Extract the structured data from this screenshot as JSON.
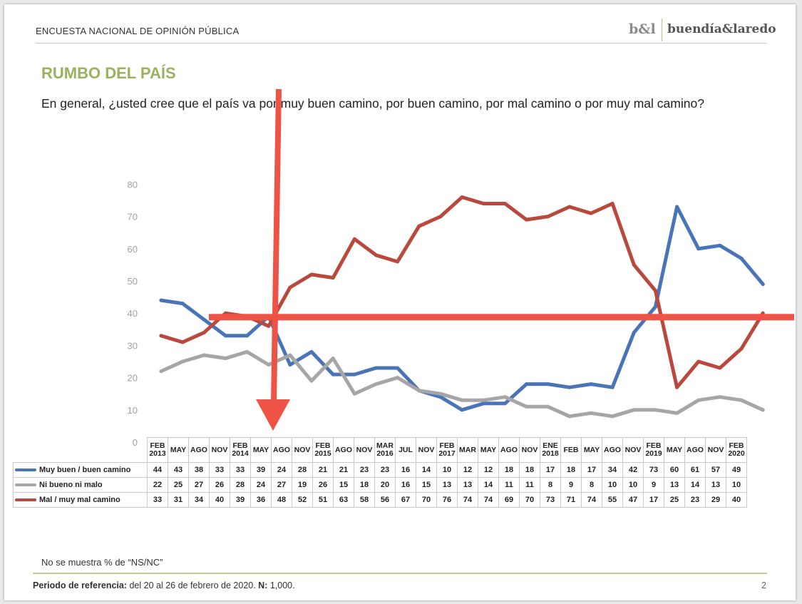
{
  "header": {
    "title": "ENCUESTA NACIONAL DE OPINIÓN PÚBLICA",
    "logo_mark": "b&l",
    "logo_name": "buendía&laredo"
  },
  "slide_title": "RUMBO DEL PAÍS",
  "question": "En general, ¿usted cree que el país va por muy buen camino, por buen camino, por mal camino o por muy mal camino?",
  "chart_data": {
    "type": "line",
    "ylim": [
      0,
      80
    ],
    "yticks": [
      "0",
      "10",
      "20",
      "30",
      "40",
      "50",
      "60",
      "70",
      "80"
    ],
    "grid": false,
    "legend": "data table below chart",
    "categories": [
      [
        "FEB",
        "2013"
      ],
      [
        "MAY"
      ],
      [
        "AGO"
      ],
      [
        "NOV"
      ],
      [
        "FEB",
        "2014"
      ],
      [
        "MAY"
      ],
      [
        "AGO"
      ],
      [
        "NOV"
      ],
      [
        "FEB",
        "2015"
      ],
      [
        "AGO"
      ],
      [
        "NOV"
      ],
      [
        "MAR",
        "2016"
      ],
      [
        "JUL"
      ],
      [
        "NOV"
      ],
      [
        "FEB",
        "2017"
      ],
      [
        "MAR"
      ],
      [
        "MAY"
      ],
      [
        "AGO"
      ],
      [
        "NOV"
      ],
      [
        "ENE",
        "2018"
      ],
      [
        "FEB"
      ],
      [
        "MAY"
      ],
      [
        "AGO"
      ],
      [
        "NOV"
      ],
      [
        "FEB",
        "2019"
      ],
      [
        "MAY"
      ],
      [
        "AGO"
      ],
      [
        "NOV"
      ],
      [
        "FEB",
        "2020"
      ]
    ],
    "series": [
      {
        "name": "Muy buen / buen camino",
        "color": "#4a74b8",
        "values": [
          44,
          43,
          38,
          33,
          33,
          39,
          24,
          28,
          21,
          21,
          23,
          23,
          16,
          14,
          10,
          12,
          12,
          18,
          18,
          17,
          18,
          17,
          34,
          42,
          73,
          60,
          61,
          57,
          49
        ]
      },
      {
        "name": "Ni bueno ni malo",
        "color": "#a6a6a6",
        "values": [
          22,
          25,
          27,
          26,
          28,
          24,
          27,
          19,
          26,
          15,
          18,
          20,
          16,
          15,
          13,
          13,
          14,
          11,
          11,
          8,
          9,
          8,
          10,
          10,
          9,
          13,
          14,
          13,
          10
        ]
      },
      {
        "name": "Mal / muy mal camino",
        "color": "#b9493c",
        "values": [
          33,
          31,
          34,
          40,
          39,
          36,
          48,
          52,
          51,
          63,
          58,
          56,
          67,
          70,
          76,
          74,
          74,
          69,
          70,
          73,
          71,
          74,
          55,
          47,
          17,
          25,
          23,
          29,
          40
        ]
      }
    ],
    "annotations": {
      "color": "#ee5346",
      "horizontal_line_value": 39,
      "vertical_arrow_category": "MAY (2014)"
    }
  },
  "note": "No se muestra % de “NS/NC”",
  "footer": {
    "label": "Periodo de referencia:",
    "text": " del 20 al 26 de febrero de 2020. ",
    "n_label": "N:",
    "n_text": " 1,000.",
    "page": "2"
  }
}
